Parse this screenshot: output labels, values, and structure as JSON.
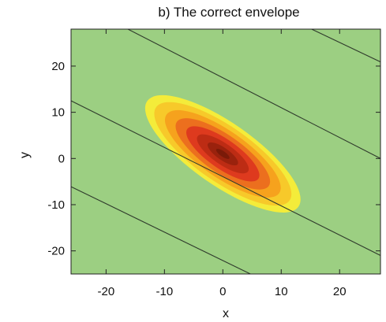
{
  "chart_data": {
    "type": "heatmap",
    "title": "b) The correct envelope",
    "xlabel": "x",
    "ylabel": "y",
    "xlim": [
      -26,
      27
    ],
    "ylim": [
      -25,
      28
    ],
    "xticks": [
      -20,
      -10,
      0,
      10,
      20
    ],
    "yticks": [
      -20,
      -10,
      0,
      10,
      20
    ],
    "xtick_labels": [
      "-20",
      "-10",
      "0",
      "10",
      "20"
    ],
    "ytick_labels": [
      "-20",
      "-10",
      "0",
      "10",
      "20"
    ],
    "grid": false,
    "legend": "none",
    "background_color": "#9ccf82",
    "colormap": [
      "#9ccf82",
      "#f4ec3a",
      "#f6a21d",
      "#de3a1e",
      "#7a1a08"
    ],
    "distribution": {
      "center": [
        0,
        1
      ],
      "major_axis_angle_deg": -35,
      "sigma_major": 6.2,
      "sigma_minor": 2.1
    },
    "contour_lines": [
      {
        "x": [
          -26,
          27
        ],
        "y": [
          34.3,
          0.0
        ]
      },
      {
        "x": [
          -26,
          27
        ],
        "y": [
          12.5,
          -21.0
        ]
      },
      {
        "x": [
          -26,
          27
        ],
        "y": [
          -6.1,
          -38.7
        ]
      },
      {
        "x": [
          -26,
          27
        ],
        "y": [
          52.8,
          20.9
        ]
      }
    ]
  }
}
